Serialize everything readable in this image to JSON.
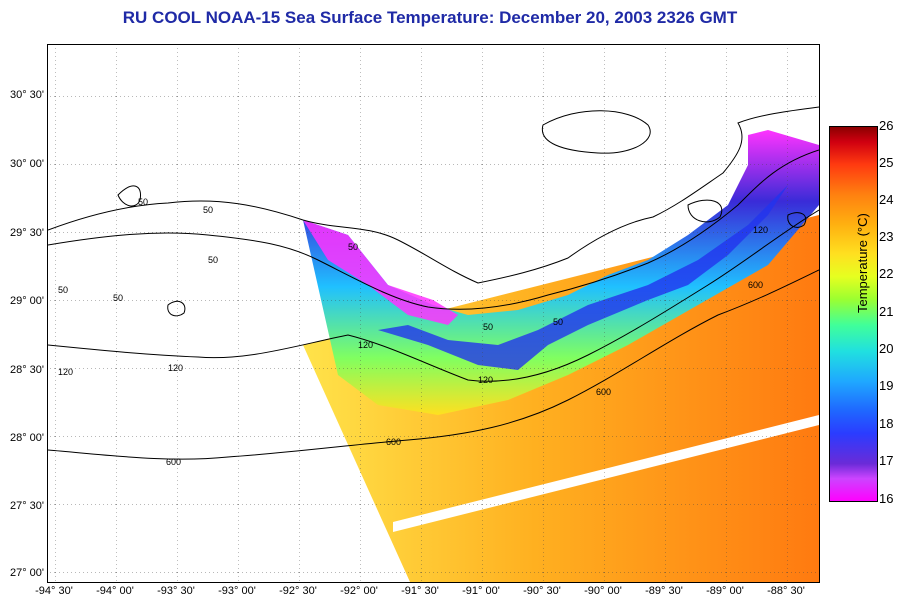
{
  "title": "RU COOL  NOAA-15  Sea Surface Temperature:  December 20, 2003 2326 GMT",
  "lat_labels": [
    "30° 30'",
    "30° 00'",
    "29° 30'",
    "29° 00'",
    "28° 30'",
    "28° 00'",
    "27° 30'",
    "27° 00'"
  ],
  "lon_labels": [
    "-94° 30'",
    "-94° 00'",
    "-93° 30'",
    "-93° 00'",
    "-92° 30'",
    "-92° 00'",
    "-91° 30'",
    "-91° 00'",
    "-90° 30'",
    "-90° 00'",
    "-89° 30'",
    "-89° 00'",
    "-88° 30'"
  ],
  "contour_labels": [
    "50",
    "50",
    "50",
    "50",
    "50",
    "50",
    "50",
    "50",
    "120",
    "120",
    "120",
    "120",
    "120",
    "600",
    "600",
    "600",
    "600"
  ],
  "colorbar": {
    "title": "Temperature (°C)",
    "ticks": [
      "26",
      "25",
      "24",
      "23",
      "22",
      "21",
      "20",
      "19",
      "18",
      "17",
      "16"
    ],
    "min": 16,
    "max": 26
  },
  "colors": {
    "title": "#1f2aa6",
    "land": "#ffffff",
    "contour": "#000000"
  }
}
